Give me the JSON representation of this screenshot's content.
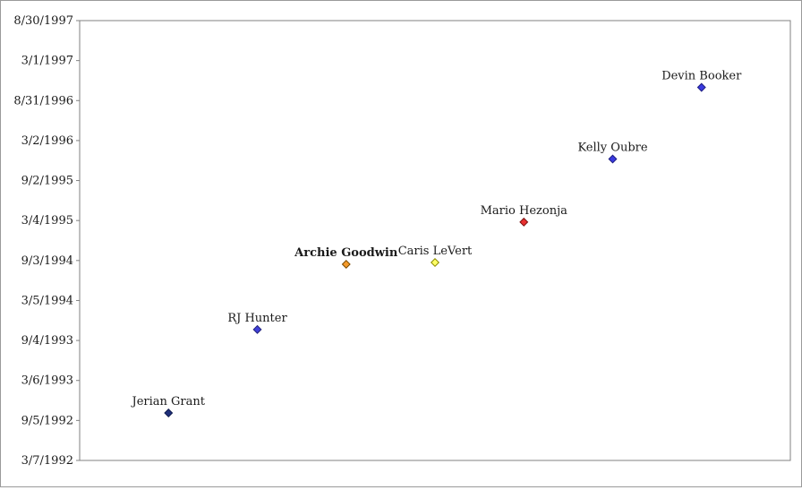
{
  "chart": {
    "title": "",
    "background": "#ffffff",
    "frame_border_color": "#9a9a9a",
    "plot_border_color": "#808080",
    "axis_text_color": "#1a1a1a",
    "label_text_color": "#1a1a1a",
    "axis_font_size": 13,
    "label_font_size": 13
  },
  "chart_data": {
    "type": "scatter",
    "title": "",
    "xlabel": "",
    "ylabel": "",
    "legend": "none",
    "gridlines": false,
    "x_axis": {
      "min": 0,
      "max": 8,
      "tick_labels_visible": false
    },
    "y_axis": {
      "type": "date",
      "top_date": "8/30/1997",
      "bottom_date": "3/7/1992",
      "tick_labels_top_to_bottom": [
        "8/30/1997",
        "3/1/1997",
        "8/31/1996",
        "3/2/1996",
        "9/2/1995",
        "3/4/1995",
        "9/3/1994",
        "3/5/1994",
        "9/4/1993",
        "3/6/1993",
        "9/5/1992",
        "3/7/1992"
      ]
    },
    "points": [
      {
        "label": "Jerian Grant",
        "x": 1,
        "date": "10/9/1992",
        "fill": "#1f2f7a",
        "stroke": "#101c4f",
        "bold": false
      },
      {
        "label": "RJ Hunter",
        "x": 2,
        "date": "10/24/1993",
        "fill": "#4040d9",
        "stroke": "#22227a",
        "bold": false
      },
      {
        "label": "Archie Goodwin",
        "x": 3,
        "date": "8/17/1994",
        "fill": "#f49a2a",
        "stroke": "#7a4a00",
        "bold": true
      },
      {
        "label": "Caris LeVert",
        "x": 4,
        "date": "8/25/1994",
        "fill": "#ffff66",
        "stroke": "#8a8a00",
        "bold": false
      },
      {
        "label": "Mario Hezonja",
        "x": 5,
        "date": "2/25/1995",
        "fill": "#e83030",
        "stroke": "#7a1010",
        "bold": false
      },
      {
        "label": "Kelly Oubre",
        "x": 6,
        "date": "12/9/1995",
        "fill": "#3a3ae0",
        "stroke": "#1c1c80",
        "bold": false
      },
      {
        "label": "Devin Booker",
        "x": 7,
        "date": "10/30/1996",
        "fill": "#3a3ae0",
        "stroke": "#1c1c80",
        "bold": false
      }
    ]
  }
}
